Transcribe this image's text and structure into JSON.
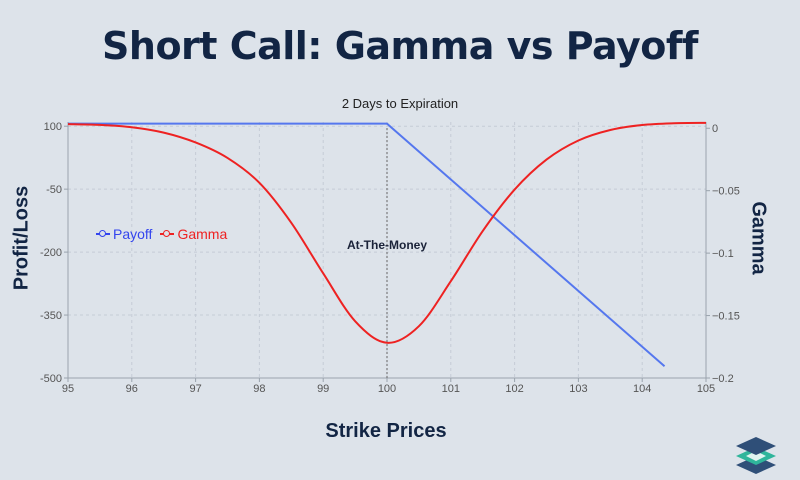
{
  "page": {
    "title": "Short Call: Gamma vs Payoff"
  },
  "chart_data": {
    "type": "line",
    "title": "2 Days to Expiration",
    "xlabel": "Strike Prices",
    "ylabel_left": "Profit/Loss",
    "ylabel_right": "Gamma",
    "xlim": [
      95,
      105
    ],
    "ylim_left": [
      -500,
      110
    ],
    "ylim_right": [
      -0.2,
      0.005
    ],
    "x_ticks": [
      95,
      96,
      97,
      98,
      99,
      100,
      101,
      102,
      103,
      104,
      105
    ],
    "y_ticks_left": [
      100,
      -50,
      -200,
      -350,
      -500
    ],
    "y_ticks_right": [
      0,
      -0.05,
      -0.1,
      -0.15,
      -0.2
    ],
    "y_tick_labels_left": [
      "100",
      "-50",
      "-200",
      "-350",
      "-500"
    ],
    "y_tick_labels_right": [
      "0",
      "−0.05",
      "−0.1",
      "−0.15",
      "−0.2"
    ],
    "grid": true,
    "annotation": {
      "text": "At-The-Money",
      "x": 100
    },
    "legend_position": "left",
    "series": [
      {
        "name": "Payoff",
        "axis": "left",
        "color": "#5577ee",
        "x": [
          95,
          100,
          104.35
        ],
        "values": [
          106,
          106,
          -472
        ]
      },
      {
        "name": "Gamma",
        "axis": "right",
        "color": "#ee2222",
        "x": [
          95,
          95.5,
          96,
          96.5,
          97,
          97.5,
          98,
          98.5,
          99,
          99.5,
          100,
          100.5,
          101,
          101.5,
          102,
          102.5,
          103,
          103.5,
          104,
          104.5,
          105
        ],
        "values": [
          0.0033,
          0.0027,
          0.0008,
          -0.0035,
          -0.0114,
          -0.0238,
          -0.0437,
          -0.0757,
          -0.1162,
          -0.1545,
          -0.1718,
          -0.1585,
          -0.1225,
          -0.0823,
          -0.0491,
          -0.0251,
          -0.0098,
          -0.0014,
          0.0026,
          0.004,
          0.0043
        ]
      }
    ]
  },
  "icons": {
    "logo": "stacked-layers-logo-icon"
  }
}
